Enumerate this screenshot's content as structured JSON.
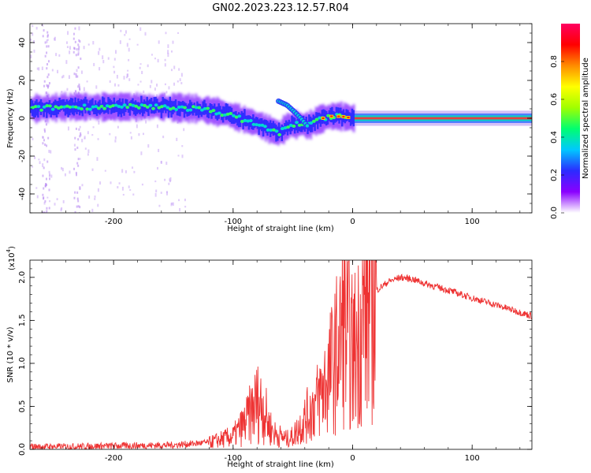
{
  "figure": {
    "title": "GN02.2023.223.12.57.R04"
  },
  "chart_data": [
    {
      "type": "heatmap",
      "xlabel": "Height of straight line (km)",
      "ylabel": "Frequency (Hz)",
      "xlim": [
        -270,
        150
      ],
      "ylim": [
        -50,
        50
      ],
      "xticks": [
        -200,
        -100,
        0,
        100
      ],
      "yticks": [
        -40,
        -20,
        0,
        20,
        40
      ],
      "ridge": {
        "x": [
          -270,
          -240,
          -200,
          -160,
          -130,
          -110,
          -95,
          -80,
          -70,
          -62,
          -55,
          -45,
          -38,
          -30,
          -20,
          -10,
          0,
          30,
          60,
          100,
          150
        ],
        "y": [
          5,
          6,
          6,
          6,
          5,
          3,
          0,
          -3,
          -6,
          -8,
          -4,
          -3,
          -4,
          -1,
          1,
          1,
          0,
          0,
          0,
          0,
          0
        ]
      },
      "upper_branch": {
        "x": [
          -62,
          -55,
          -48,
          -42,
          -38
        ],
        "y": [
          9,
          7,
          3,
          -1,
          -4
        ]
      },
      "colorbar": {
        "label": "Normalized spectral amplitude",
        "range": [
          0.0,
          1.0
        ],
        "ticks": [
          0.0,
          0.2,
          0.4,
          0.6,
          0.8
        ],
        "colors": [
          "#ffffff",
          "#8a00ff",
          "#2b2bff",
          "#00c8ff",
          "#00ff70",
          "#a0ff00",
          "#ffff00",
          "#ff8c00",
          "#ff0000",
          "#ff0060"
        ]
      }
    },
    {
      "type": "line",
      "xlabel": "Height of straight line (km)",
      "ylabel": "SNR (10 * v/v)",
      "scale_label": "(x10",
      "scale_exp": "4",
      "scale_close": ")",
      "xlim": [
        -270,
        150
      ],
      "ylim": [
        0,
        2.2
      ],
      "xticks": [
        -200,
        -100,
        0,
        100
      ],
      "yticks": [
        "0.0",
        "0.5",
        "1.0",
        "1.5",
        "2.0"
      ],
      "color": "#ee3333",
      "series": [
        {
          "x": [
            -270,
            -250,
            -200,
            -150,
            -120,
            -100,
            -90,
            -80,
            -75,
            -70,
            -65,
            -60,
            -55,
            -50,
            -45,
            -40,
            -35,
            -30,
            -25,
            -20,
            -15,
            -10,
            -8,
            -5,
            0,
            5,
            10,
            20,
            30,
            40,
            50,
            60,
            80,
            100,
            120,
            150
          ],
          "y": [
            0.03,
            0.03,
            0.04,
            0.05,
            0.08,
            0.15,
            0.3,
            0.55,
            0.5,
            0.28,
            0.18,
            0.15,
            0.12,
            0.15,
            0.25,
            0.35,
            0.45,
            0.55,
            0.7,
            0.85,
            1.05,
            1.25,
            1.5,
            1.3,
            1.1,
            1.3,
            1.6,
            1.85,
            1.95,
            2.0,
            1.98,
            1.93,
            1.85,
            1.76,
            1.68,
            1.55
          ]
        }
      ]
    }
  ]
}
